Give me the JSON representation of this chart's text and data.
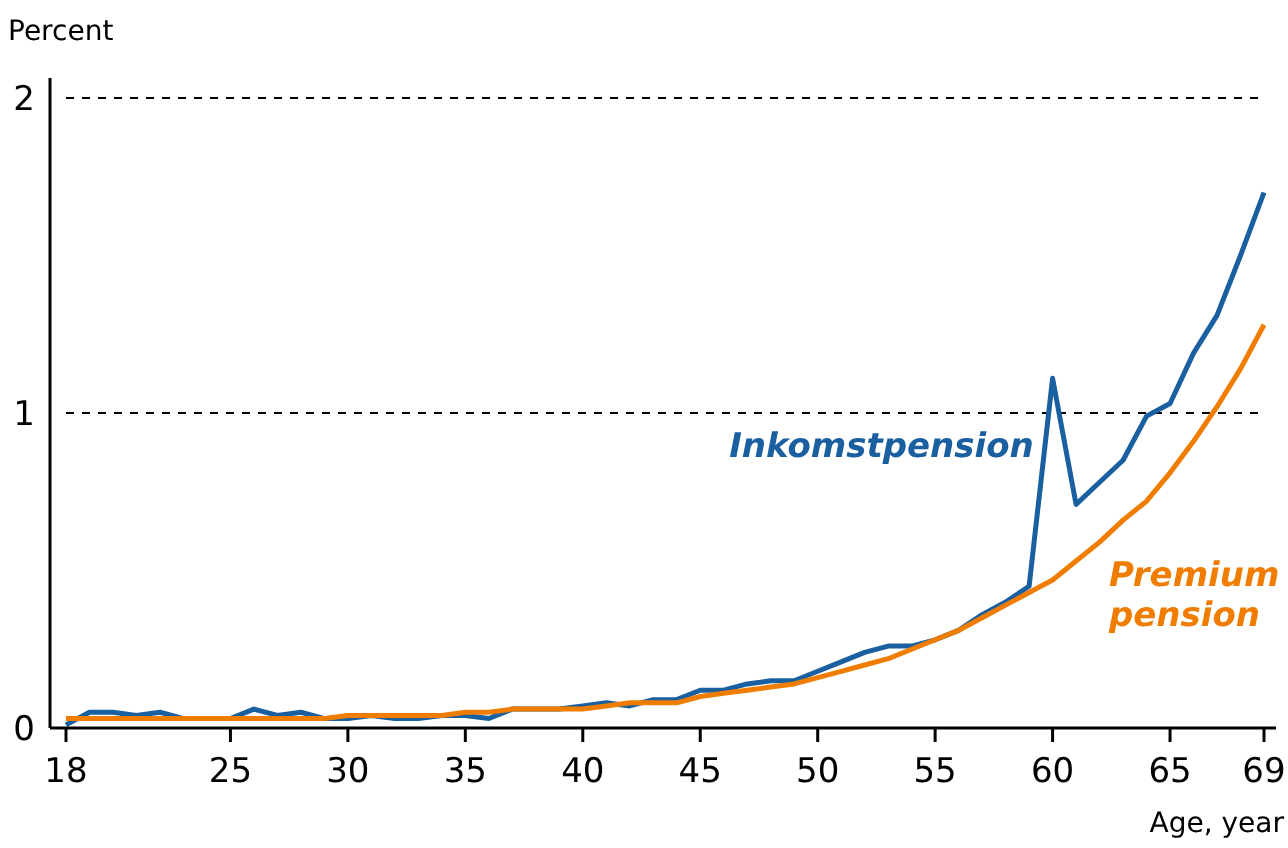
{
  "chart_data": {
    "type": "line",
    "ylabel": "Percent",
    "xlabel": "Age, year",
    "x": [
      18,
      19,
      20,
      21,
      22,
      23,
      24,
      25,
      26,
      27,
      28,
      29,
      30,
      31,
      32,
      33,
      34,
      35,
      36,
      37,
      38,
      39,
      40,
      41,
      42,
      43,
      44,
      45,
      46,
      47,
      48,
      49,
      50,
      51,
      52,
      53,
      54,
      55,
      56,
      57,
      58,
      59,
      60,
      61,
      62,
      63,
      64,
      65,
      66,
      67,
      68,
      69
    ],
    "series": [
      {
        "name": "Inkomstpension",
        "color": "#1a5fa0",
        "values": [
          0.01,
          0.05,
          0.05,
          0.04,
          0.05,
          0.03,
          0.03,
          0.03,
          0.06,
          0.04,
          0.05,
          0.03,
          0.03,
          0.04,
          0.03,
          0.03,
          0.04,
          0.04,
          0.03,
          0.06,
          0.06,
          0.06,
          0.07,
          0.08,
          0.07,
          0.09,
          0.09,
          0.12,
          0.12,
          0.14,
          0.15,
          0.15,
          0.18,
          0.21,
          0.24,
          0.26,
          0.26,
          0.28,
          0.31,
          0.36,
          0.4,
          0.45,
          1.11,
          0.71,
          0.78,
          0.85,
          0.99,
          1.03,
          1.19,
          1.31,
          1.5,
          1.7
        ]
      },
      {
        "name": "Premium pension",
        "color": "#f07d00",
        "values": [
          0.03,
          0.03,
          0.03,
          0.03,
          0.03,
          0.03,
          0.03,
          0.03,
          0.03,
          0.03,
          0.03,
          0.03,
          0.04,
          0.04,
          0.04,
          0.04,
          0.04,
          0.05,
          0.05,
          0.06,
          0.06,
          0.06,
          0.06,
          0.07,
          0.08,
          0.08,
          0.08,
          0.1,
          0.11,
          0.12,
          0.13,
          0.14,
          0.16,
          0.18,
          0.2,
          0.22,
          0.25,
          0.28,
          0.31,
          0.35,
          0.39,
          0.43,
          0.47,
          0.53,
          0.59,
          0.66,
          0.72,
          0.81,
          0.91,
          1.02,
          1.14,
          1.28
        ]
      }
    ],
    "xlim": [
      18,
      69
    ],
    "xticks": [
      18,
      25,
      30,
      35,
      40,
      45,
      50,
      55,
      60,
      65,
      69
    ],
    "ylim": [
      0,
      2
    ],
    "yticks": [
      0,
      1,
      2
    ],
    "grid": "y",
    "line_style": "solid",
    "marker": "none"
  }
}
